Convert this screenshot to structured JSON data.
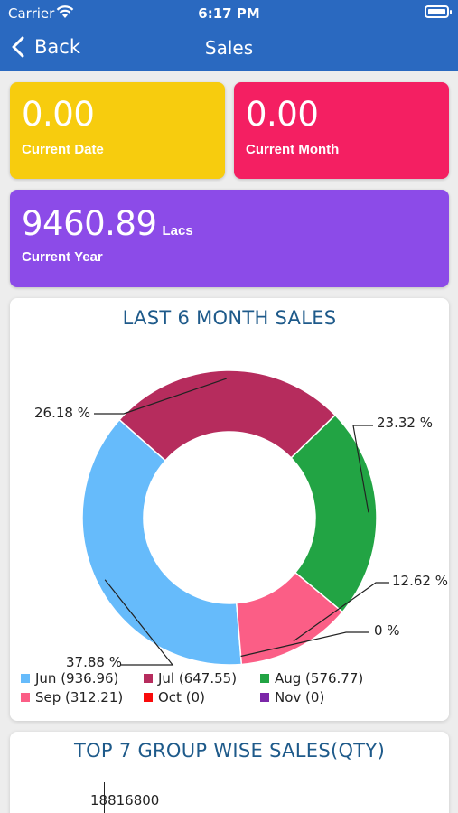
{
  "status_bar": {
    "carrier": "Carrier",
    "time": "6:17 PM"
  },
  "nav": {
    "back_label": "Back",
    "title": "Sales"
  },
  "tiles": {
    "current_date": {
      "value": "0.00",
      "label": "Current Date",
      "color": "#f7cc0e"
    },
    "current_month": {
      "value": "0.00",
      "label": "Current Month",
      "color": "#f41f62"
    },
    "current_year": {
      "value": "9460.89",
      "unit": "Lacs",
      "label": "Current Year",
      "color": "#8c4be8"
    }
  },
  "last6": {
    "title": "LAST 6 MONTH SALES",
    "legend": [
      {
        "label": "Jun (936.96)",
        "color": "#66bbfb"
      },
      {
        "label": "Jul (647.55)",
        "color": "#b62c5d"
      },
      {
        "label": "Aug (576.77)",
        "color": "#22a444"
      },
      {
        "label": "Sep (312.21)",
        "color": "#fb5e86"
      },
      {
        "label": "Oct (0)",
        "color": "#f90b0b"
      },
      {
        "label": "Nov (0)",
        "color": "#7b27a8"
      }
    ]
  },
  "top7": {
    "title": "TOP 7 GROUP WISE SALES(QTY)",
    "axis_value": "18816800"
  },
  "chart_data": [
    {
      "type": "pie",
      "title": "LAST 6 MONTH SALES",
      "categories": [
        "Jun",
        "Jul",
        "Aug",
        "Sep",
        "Oct",
        "Nov"
      ],
      "values": [
        936.96,
        647.55,
        576.77,
        312.21,
        0,
        0
      ],
      "percent_labels": [
        "37.88 %",
        "26.18 %",
        "23.32 %",
        "12.62 %",
        "0 %"
      ],
      "colors": [
        "#66bbfb",
        "#b62c5d",
        "#22a444",
        "#fb5e86",
        "#f90b0b",
        "#7b27a8"
      ],
      "donut": true,
      "legend": "bottom-left"
    }
  ]
}
